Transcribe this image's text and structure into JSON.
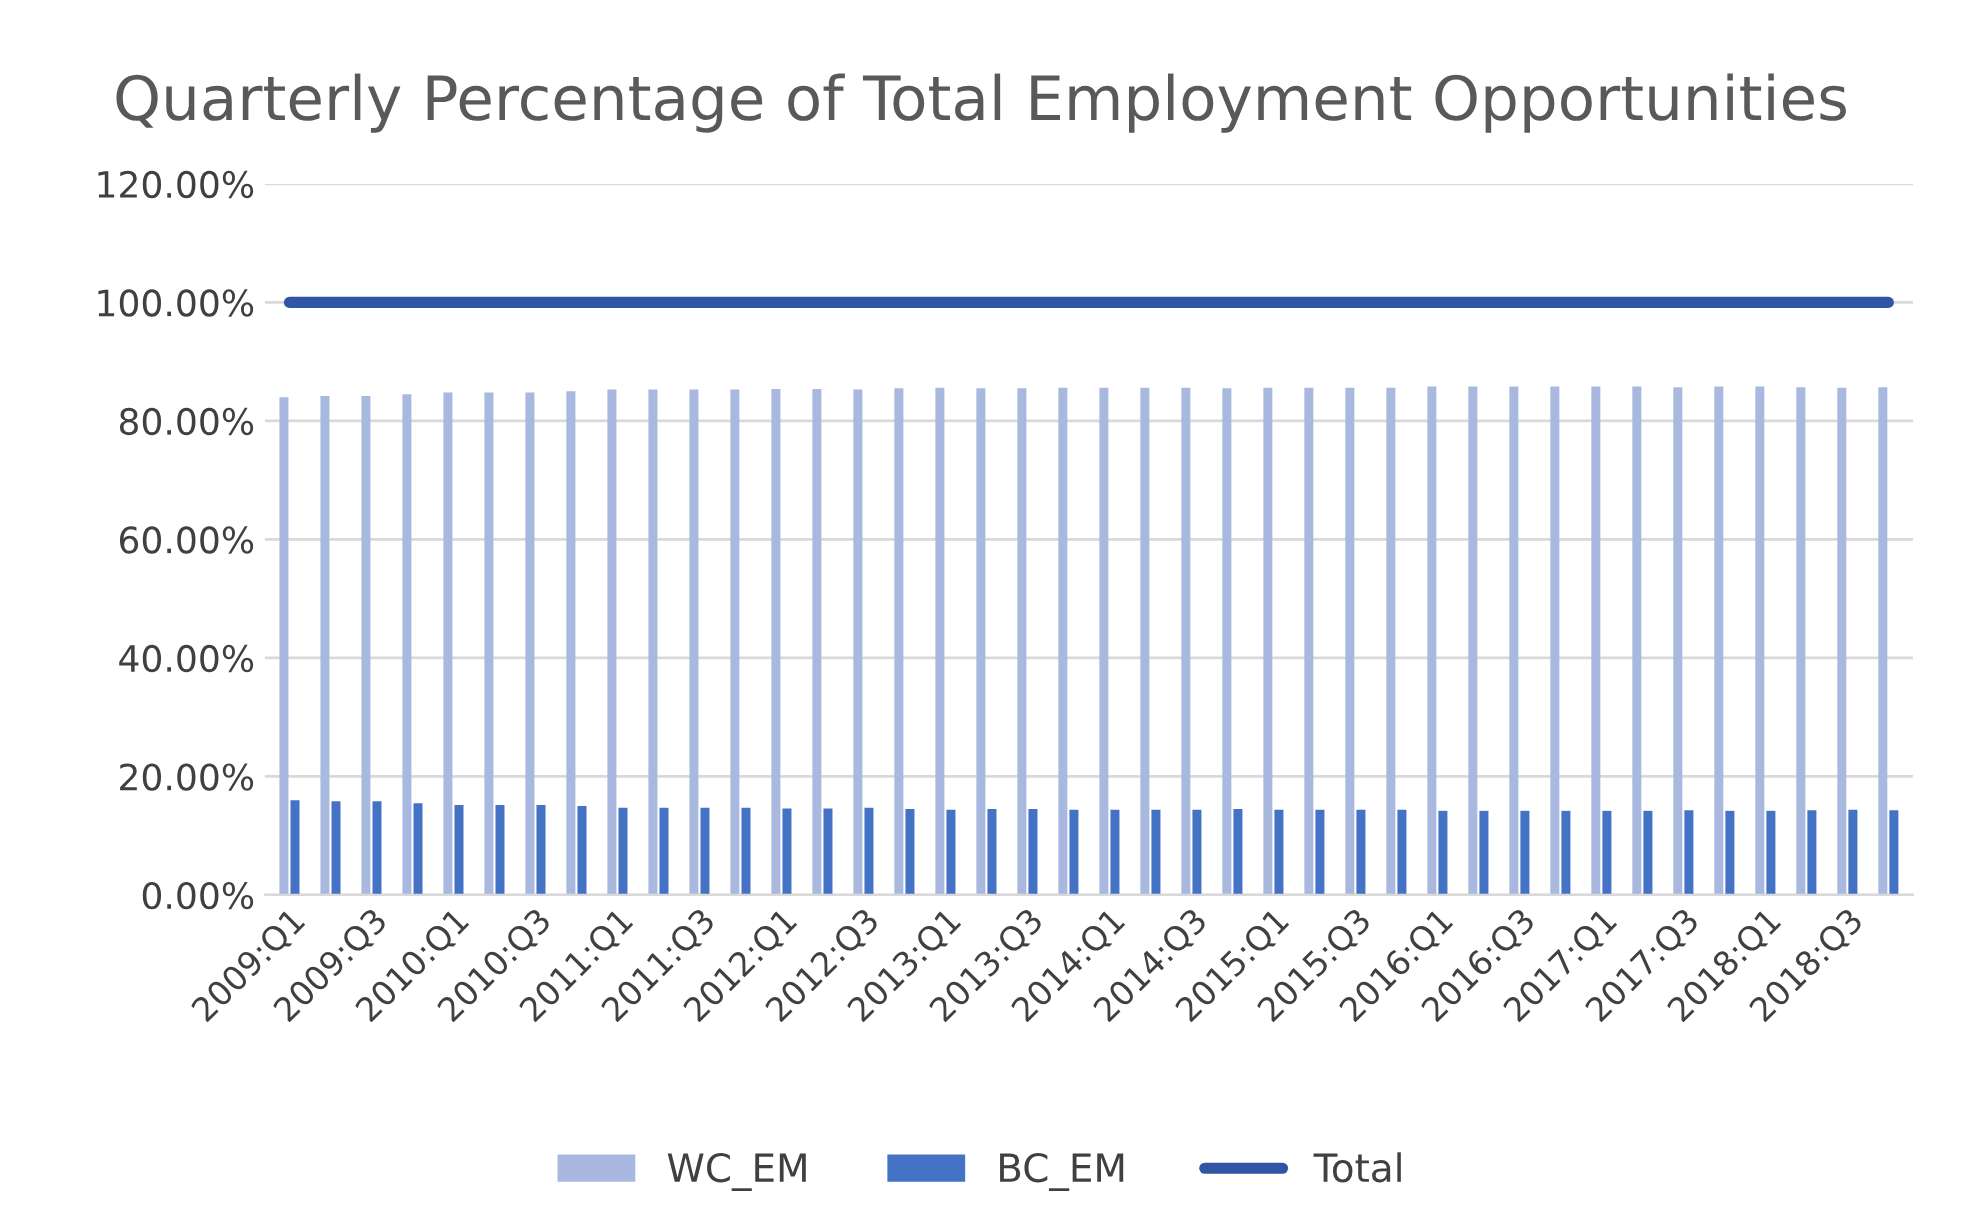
{
  "chart_data": {
    "type": "bar",
    "title": "Quarterly Percentage of Total Employment Opportunities",
    "categories": [
      "2009:Q1",
      null,
      "2009:Q3",
      null,
      "2010:Q1",
      null,
      "2010:Q3",
      null,
      "2011:Q1",
      null,
      "2011:Q3",
      null,
      "2012:Q1",
      null,
      "2012:Q3",
      null,
      "2013:Q1",
      null,
      "2013:Q3",
      null,
      "2014:Q1",
      null,
      "2014:Q3",
      null,
      "2015:Q1",
      null,
      "2015:Q3",
      null,
      "2016:Q1",
      null,
      "2016:Q3",
      null,
      "2017:Q1",
      null,
      "2017:Q3",
      null,
      "2018:Q1",
      null,
      "2018:Q3",
      null
    ],
    "series": [
      {
        "name": "WC_EM",
        "color": "#a9b8de",
        "values": [
          84.0,
          84.2,
          84.2,
          84.5,
          84.8,
          84.8,
          84.8,
          85.0,
          85.3,
          85.3,
          85.3,
          85.3,
          85.4,
          85.4,
          85.3,
          85.5,
          85.6,
          85.5,
          85.5,
          85.6,
          85.6,
          85.6,
          85.6,
          85.5,
          85.6,
          85.6,
          85.6,
          85.6,
          85.8,
          85.8,
          85.8,
          85.8,
          85.8,
          85.8,
          85.7,
          85.8,
          85.8,
          85.7,
          85.6,
          85.7
        ]
      },
      {
        "name": "BC_EM",
        "color": "#4472c4",
        "values": [
          16.0,
          15.8,
          15.8,
          15.5,
          15.2,
          15.2,
          15.2,
          15.0,
          14.7,
          14.7,
          14.7,
          14.7,
          14.6,
          14.6,
          14.7,
          14.5,
          14.4,
          14.5,
          14.5,
          14.4,
          14.4,
          14.4,
          14.4,
          14.5,
          14.4,
          14.4,
          14.4,
          14.4,
          14.2,
          14.2,
          14.2,
          14.2,
          14.2,
          14.2,
          14.3,
          14.2,
          14.2,
          14.3,
          14.4,
          14.3
        ]
      },
      {
        "name": "Total",
        "type": "line",
        "color": "#2f55a4",
        "values": [
          100,
          100,
          100,
          100,
          100,
          100,
          100,
          100,
          100,
          100,
          100,
          100,
          100,
          100,
          100,
          100,
          100,
          100,
          100,
          100,
          100,
          100,
          100,
          100,
          100,
          100,
          100,
          100,
          100,
          100,
          100,
          100,
          100,
          100,
          100,
          100,
          100,
          100,
          100,
          100
        ]
      }
    ],
    "ylim": [
      0,
      120
    ],
    "yticks": [
      {
        "value": 0,
        "label": "0.00%"
      },
      {
        "value": 20,
        "label": "20.00%"
      },
      {
        "value": 40,
        "label": "40.00%"
      },
      {
        "value": 60,
        "label": "60.00%"
      },
      {
        "value": 80,
        "label": "80.00%"
      },
      {
        "value": 100,
        "label": "100.00%"
      },
      {
        "value": 120,
        "label": "120.00%"
      }
    ],
    "grid": "y",
    "legend": "bottom"
  }
}
